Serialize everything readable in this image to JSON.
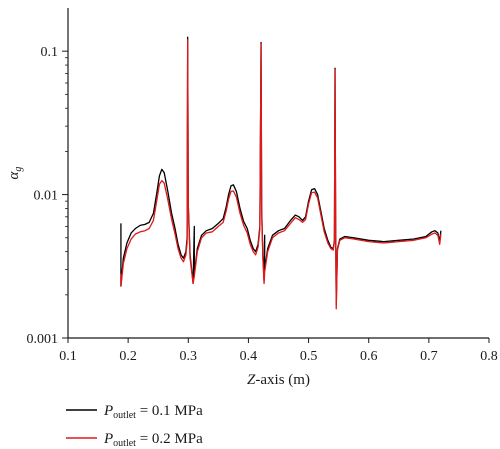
{
  "chart_data": {
    "type": "line",
    "title": "",
    "xlabel_italic": "Z",
    "xlabel_rest": "-axis (m)",
    "ylabel_symbol": "α",
    "ylabel_sub": "g",
    "xlim": [
      0.1,
      0.8
    ],
    "ylim": [
      0.001,
      0.2
    ],
    "yscale": "log",
    "grid": false,
    "legend_position": "bottom-left",
    "x_ticks": [
      "0.1",
      "0.2",
      "0.3",
      "0.4",
      "0.5",
      "0.6",
      "0.7",
      "0.8"
    ],
    "y_ticks": [
      "0.001",
      "0.01",
      "0.1"
    ],
    "series": [
      {
        "legend": {
          "symbol": "P",
          "sub": "outlet",
          "rest": " = 0.1 MPa"
        },
        "color": "#000000",
        "points": [
          [
            0.188,
            0.0063
          ],
          [
            0.188,
            0.0023
          ],
          [
            0.192,
            0.0036
          ],
          [
            0.198,
            0.0046
          ],
          [
            0.205,
            0.0054
          ],
          [
            0.212,
            0.0058
          ],
          [
            0.22,
            0.0061
          ],
          [
            0.228,
            0.0062
          ],
          [
            0.235,
            0.0064
          ],
          [
            0.242,
            0.0074
          ],
          [
            0.248,
            0.0105
          ],
          [
            0.252,
            0.0135
          ],
          [
            0.256,
            0.015
          ],
          [
            0.26,
            0.0142
          ],
          [
            0.266,
            0.0105
          ],
          [
            0.272,
            0.0075
          ],
          [
            0.278,
            0.0058
          ],
          [
            0.283,
            0.0045
          ],
          [
            0.288,
            0.0038
          ],
          [
            0.292,
            0.0036
          ],
          [
            0.296,
            0.004
          ],
          [
            0.298,
            0.005
          ],
          [
            0.299,
            0.125
          ],
          [
            0.3,
            0.0085
          ],
          [
            0.303,
            0.0038
          ],
          [
            0.308,
            0.0024
          ],
          [
            0.31,
            0.006
          ],
          [
            0.31,
            0.0028
          ],
          [
            0.315,
            0.0042
          ],
          [
            0.322,
            0.0052
          ],
          [
            0.33,
            0.0056
          ],
          [
            0.34,
            0.0058
          ],
          [
            0.35,
            0.0063
          ],
          [
            0.358,
            0.0068
          ],
          [
            0.363,
            0.0082
          ],
          [
            0.367,
            0.01
          ],
          [
            0.371,
            0.0115
          ],
          [
            0.375,
            0.0117
          ],
          [
            0.38,
            0.0105
          ],
          [
            0.386,
            0.008
          ],
          [
            0.392,
            0.0065
          ],
          [
            0.398,
            0.0058
          ],
          [
            0.403,
            0.0048
          ],
          [
            0.408,
            0.0042
          ],
          [
            0.412,
            0.004
          ],
          [
            0.416,
            0.0045
          ],
          [
            0.419,
            0.006
          ],
          [
            0.421,
            0.115
          ],
          [
            0.422,
            0.008
          ],
          [
            0.424,
            0.0038
          ],
          [
            0.426,
            0.0025
          ],
          [
            0.427,
            0.0052
          ],
          [
            0.427,
            0.003
          ],
          [
            0.432,
            0.0042
          ],
          [
            0.44,
            0.0052
          ],
          [
            0.45,
            0.0056
          ],
          [
            0.46,
            0.0058
          ],
          [
            0.47,
            0.0066
          ],
          [
            0.478,
            0.0072
          ],
          [
            0.484,
            0.007
          ],
          [
            0.49,
            0.0066
          ],
          [
            0.495,
            0.007
          ],
          [
            0.5,
            0.009
          ],
          [
            0.505,
            0.0108
          ],
          [
            0.51,
            0.011
          ],
          [
            0.515,
            0.01
          ],
          [
            0.52,
            0.0078
          ],
          [
            0.526,
            0.0058
          ],
          [
            0.532,
            0.0048
          ],
          [
            0.537,
            0.0043
          ],
          [
            0.541,
            0.0042
          ],
          [
            0.543,
            0.0048
          ],
          [
            0.544,
            0.076
          ],
          [
            0.545,
            0.006
          ],
          [
            0.546,
            0.0017
          ],
          [
            0.548,
            0.0042
          ],
          [
            0.552,
            0.0049
          ],
          [
            0.56,
            0.0051
          ],
          [
            0.575,
            0.005
          ],
          [
            0.6,
            0.0048
          ],
          [
            0.625,
            0.0047
          ],
          [
            0.65,
            0.0048
          ],
          [
            0.675,
            0.0049
          ],
          [
            0.695,
            0.0051
          ],
          [
            0.705,
            0.0055
          ],
          [
            0.71,
            0.0056
          ],
          [
            0.715,
            0.0054
          ],
          [
            0.718,
            0.0047
          ],
          [
            0.72,
            0.0056
          ]
        ]
      },
      {
        "legend": {
          "symbol": "P",
          "sub": "outlet",
          "rest": " = 0.2 MPa"
        },
        "color": "#e01818",
        "points": [
          [
            0.188,
            0.0028
          ],
          [
            0.188,
            0.0023
          ],
          [
            0.192,
            0.0033
          ],
          [
            0.198,
            0.0042
          ],
          [
            0.205,
            0.0049
          ],
          [
            0.212,
            0.0053
          ],
          [
            0.22,
            0.0055
          ],
          [
            0.228,
            0.0056
          ],
          [
            0.235,
            0.0058
          ],
          [
            0.242,
            0.0066
          ],
          [
            0.248,
            0.0093
          ],
          [
            0.252,
            0.0118
          ],
          [
            0.256,
            0.0125
          ],
          [
            0.26,
            0.012
          ],
          [
            0.266,
            0.0092
          ],
          [
            0.272,
            0.0068
          ],
          [
            0.278,
            0.0053
          ],
          [
            0.283,
            0.0042
          ],
          [
            0.288,
            0.0036
          ],
          [
            0.292,
            0.0034
          ],
          [
            0.296,
            0.0038
          ],
          [
            0.298,
            0.0046
          ],
          [
            0.299,
            0.12
          ],
          [
            0.3,
            0.008
          ],
          [
            0.303,
            0.0036
          ],
          [
            0.308,
            0.0024
          ],
          [
            0.31,
            0.0027
          ],
          [
            0.315,
            0.004
          ],
          [
            0.322,
            0.005
          ],
          [
            0.33,
            0.0054
          ],
          [
            0.34,
            0.0055
          ],
          [
            0.35,
            0.006
          ],
          [
            0.358,
            0.0064
          ],
          [
            0.363,
            0.0077
          ],
          [
            0.367,
            0.0093
          ],
          [
            0.371,
            0.0105
          ],
          [
            0.375,
            0.0106
          ],
          [
            0.38,
            0.0096
          ],
          [
            0.386,
            0.0074
          ],
          [
            0.392,
            0.0061
          ],
          [
            0.398,
            0.0054
          ],
          [
            0.403,
            0.0045
          ],
          [
            0.408,
            0.004
          ],
          [
            0.412,
            0.0038
          ],
          [
            0.416,
            0.0043
          ],
          [
            0.419,
            0.0057
          ],
          [
            0.421,
            0.112
          ],
          [
            0.422,
            0.0076
          ],
          [
            0.424,
            0.0036
          ],
          [
            0.426,
            0.0024
          ],
          [
            0.427,
            0.0029
          ],
          [
            0.432,
            0.004
          ],
          [
            0.44,
            0.005
          ],
          [
            0.45,
            0.0054
          ],
          [
            0.46,
            0.0056
          ],
          [
            0.47,
            0.0063
          ],
          [
            0.478,
            0.0069
          ],
          [
            0.484,
            0.0067
          ],
          [
            0.49,
            0.0064
          ],
          [
            0.495,
            0.0067
          ],
          [
            0.5,
            0.0086
          ],
          [
            0.505,
            0.0103
          ],
          [
            0.51,
            0.0104
          ],
          [
            0.515,
            0.0095
          ],
          [
            0.52,
            0.0074
          ],
          [
            0.526,
            0.0055
          ],
          [
            0.532,
            0.0046
          ],
          [
            0.537,
            0.0042
          ],
          [
            0.541,
            0.0041
          ],
          [
            0.543,
            0.0047
          ],
          [
            0.544,
            0.074
          ],
          [
            0.545,
            0.0058
          ],
          [
            0.546,
            0.0016
          ],
          [
            0.548,
            0.0041
          ],
          [
            0.552,
            0.0048
          ],
          [
            0.56,
            0.005
          ],
          [
            0.575,
            0.0049
          ],
          [
            0.6,
            0.0047
          ],
          [
            0.625,
            0.0046
          ],
          [
            0.65,
            0.0047
          ],
          [
            0.675,
            0.0048
          ],
          [
            0.695,
            0.005
          ],
          [
            0.705,
            0.0053
          ],
          [
            0.71,
            0.0054
          ],
          [
            0.715,
            0.0052
          ],
          [
            0.718,
            0.0045
          ],
          [
            0.72,
            0.0053
          ]
        ]
      }
    ]
  }
}
